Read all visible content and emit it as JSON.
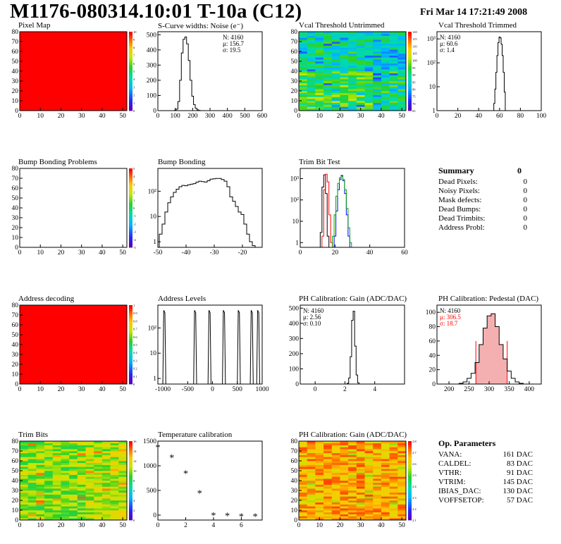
{
  "header": {
    "title": "M1176-080314.10:01 T-10a (C12)",
    "date": "Fri Mar 14 17:21:49 2008"
  },
  "panels": {
    "pixel_map": {
      "title": "Pixel Map"
    },
    "scurve": {
      "title": "S-Curve widths: Noise (e⁻)",
      "stats": [
        "N: 4160",
        "μ: 156.7",
        "σ: 19.5"
      ]
    },
    "vcal_untrimmed": {
      "title": "Vcal Threshold Untrimmed"
    },
    "vcal_trimmed": {
      "title": "Vcal Threshold Trimmed",
      "stats": [
        "N: 4160",
        "μ: 60.6",
        "σ:  1.4"
      ]
    },
    "bump_problems": {
      "title": "Bump Bonding Problems"
    },
    "bump_bonding": {
      "title": "Bump Bonding"
    },
    "trim_bit_test": {
      "title": "Trim Bit Test"
    },
    "address_decoding": {
      "title": "Address decoding"
    },
    "address_levels": {
      "title": "Address Levels"
    },
    "ph_gain": {
      "title": "PH Calibration: Gain (ADC/DAC)",
      "stats": [
        "N: 4160",
        "μ: 2.56",
        "σ: 0.10"
      ]
    },
    "ph_pedestal": {
      "title": "PH Calibration: Pedestal (DAC)",
      "stats": [
        "N: 4160",
        "μ: 306.5",
        "σ: 18.7"
      ]
    },
    "trim_bits": {
      "title": "Trim Bits"
    },
    "temp_calib": {
      "title": "Temperature calibration"
    },
    "ph_gain_map": {
      "title": "PH Calibration: Gain (ADC/DAC)"
    }
  },
  "summary": {
    "heading": "Summary",
    "total": "0",
    "rows": [
      {
        "label": "Dead Pixels:",
        "value": "0"
      },
      {
        "label": "Noisy Pixels:",
        "value": "0"
      },
      {
        "label": "Mask defects:",
        "value": "0"
      },
      {
        "label": "Dead Bumps:",
        "value": "0"
      },
      {
        "label": "Dead Trimbits:",
        "value": "0"
      },
      {
        "label": "Address Probl:",
        "value": "0"
      }
    ]
  },
  "op_parameters": {
    "heading": "Op. Parameters",
    "rows": [
      {
        "label": "VANA:",
        "value": "161 DAC"
      },
      {
        "label": "CALDEL:",
        "value": "83 DAC"
      },
      {
        "label": "VTHR:",
        "value": "91 DAC"
      },
      {
        "label": "VTRIM:",
        "value": "145 DAC"
      },
      {
        "label": "IBIAS_DAC:",
        "value": "130 DAC"
      },
      {
        "label": "VOFFSETOP:",
        "value": "57 DAC"
      }
    ]
  },
  "chart_data": [
    {
      "id": "pixel_map",
      "type": "heatmap",
      "title": "Pixel Map",
      "fill": "uniform-red",
      "xlim": [
        0,
        52
      ],
      "ylim": [
        0,
        80
      ],
      "xticks": [
        "0",
        "10",
        "20",
        "30",
        "40",
        "50"
      ],
      "yticks": [
        "0",
        "10",
        "20",
        "30",
        "40",
        "50",
        "60",
        "70",
        "80"
      ],
      "zticks": [
        "0",
        "1",
        "2",
        "3",
        "4",
        "5",
        "6",
        "7",
        "8",
        "9",
        "10"
      ]
    },
    {
      "id": "scurve",
      "type": "histogram",
      "title": "S-Curve widths: Noise (e⁻)",
      "xlim": [
        0,
        600
      ],
      "ylim": [
        0,
        520
      ],
      "xticks": [
        "0",
        "100",
        "200",
        "300",
        "400",
        "500",
        "600"
      ],
      "yticks": [
        "0",
        "100",
        "200",
        "300",
        "400",
        "500"
      ],
      "x": [
        100,
        110,
        120,
        130,
        140,
        150,
        160,
        170,
        180,
        190,
        200,
        210,
        220,
        230,
        240
      ],
      "y": [
        2,
        10,
        60,
        200,
        380,
        470,
        485,
        440,
        330,
        200,
        95,
        40,
        15,
        5,
        1
      ]
    },
    {
      "id": "vcal_untrimmed",
      "type": "heatmap",
      "title": "Vcal Threshold Untrimmed",
      "fill": "noisy-cyan-green",
      "xlim": [
        0,
        52
      ],
      "ylim": [
        0,
        80
      ],
      "xticks": [
        "0",
        "10",
        "20",
        "30",
        "40",
        "50"
      ],
      "yticks": [
        "0",
        "10",
        "20",
        "30",
        "40",
        "50",
        "60",
        "70",
        "80"
      ],
      "zticks": [
        "65",
        "70",
        "75",
        "80",
        "85",
        "90",
        "95",
        "100",
        "105",
        "110",
        "115",
        "120"
      ]
    },
    {
      "id": "vcal_trimmed",
      "type": "histogram",
      "title": "Vcal Threshold Trimmed",
      "log_y": true,
      "xlim": [
        0,
        100
      ],
      "ylim": [
        1,
        2000
      ],
      "xticks": [
        "0",
        "20",
        "40",
        "60",
        "80",
        "100"
      ],
      "yticks": [
        "1",
        "10",
        "10²",
        "10³"
      ],
      "x": [
        55,
        56,
        57,
        58,
        59,
        60,
        61,
        62,
        63,
        64,
        65,
        66
      ],
      "y": [
        2,
        8,
        40,
        200,
        700,
        1200,
        1100,
        600,
        200,
        40,
        6,
        1
      ]
    },
    {
      "id": "bump_problems",
      "type": "heatmap",
      "title": "Bump Bonding Problems",
      "fill": "empty",
      "xlim": [
        0,
        52
      ],
      "ylim": [
        0,
        80
      ],
      "xticks": [
        "0",
        "10",
        "20",
        "30",
        "40",
        "50"
      ],
      "yticks": [
        "0",
        "10",
        "20",
        "30",
        "40",
        "50",
        "60",
        "70",
        "80"
      ],
      "zticks": [
        "-5",
        "-4",
        "-3",
        "-2",
        "-1",
        "0",
        "1",
        "2",
        "3",
        "4",
        "5"
      ]
    },
    {
      "id": "bump_bonding",
      "type": "histogram",
      "title": "Bump Bonding",
      "log_y": true,
      "xlim": [
        -50,
        -13
      ],
      "ylim": [
        0.6,
        800
      ],
      "xticks": [
        "-50",
        "-40",
        "-30",
        "-20"
      ],
      "yticks": [
        "1",
        "10",
        "10²"
      ],
      "x": [
        -49,
        -48,
        -47,
        -46,
        -45,
        -44,
        -43,
        -42,
        -41,
        -40,
        -39,
        -38,
        -37,
        -36,
        -35,
        -34,
        -33,
        -32,
        -31,
        -30,
        -29,
        -28,
        -27,
        -26,
        -25,
        -24,
        -23,
        -22,
        -21,
        -20,
        -19,
        -18,
        -17,
        -16
      ],
      "y": [
        2,
        5,
        15,
        35,
        60,
        90,
        120,
        150,
        170,
        165,
        180,
        190,
        200,
        230,
        250,
        240,
        230,
        260,
        300,
        310,
        320,
        320,
        290,
        250,
        150,
        60,
        40,
        25,
        15,
        12,
        5,
        2,
        1,
        0.7
      ]
    },
    {
      "id": "trim_bit_test",
      "type": "histogram",
      "title": "Trim Bit Test",
      "log_y": true,
      "xlim": [
        0,
        60
      ],
      "ylim": [
        0.6,
        3000
      ],
      "xticks": [
        "0",
        "20",
        "40",
        "60"
      ],
      "yticks": [
        "1",
        "10",
        "10²",
        "10³"
      ],
      "series": [
        {
          "color": "#000000",
          "x": [
            12,
            13,
            14,
            15,
            16
          ],
          "y": [
            3,
            400,
            1500,
            200,
            2
          ]
        },
        {
          "color": "#ff0000",
          "x": [
            13,
            14,
            15,
            16,
            17,
            18
          ],
          "y": [
            2,
            300,
            1600,
            700,
            20,
            1
          ]
        },
        {
          "color": "#0000ff",
          "x": [
            20,
            21,
            22,
            23,
            24,
            25,
            26,
            27,
            28
          ],
          "y": [
            2,
            30,
            300,
            900,
            1400,
            800,
            200,
            20,
            2
          ]
        },
        {
          "color": "#00a000",
          "x": [
            19,
            20,
            21,
            22,
            23,
            24,
            25,
            26,
            27,
            28,
            29
          ],
          "y": [
            2,
            20,
            150,
            600,
            1100,
            1300,
            900,
            300,
            40,
            5,
            1
          ]
        }
      ]
    },
    {
      "id": "address_decoding",
      "type": "heatmap",
      "title": "Address decoding",
      "fill": "uniform-red",
      "xlim": [
        0,
        52
      ],
      "ylim": [
        0,
        80
      ],
      "xticks": [
        "0",
        "10",
        "20",
        "30",
        "40",
        "50"
      ],
      "yticks": [
        "0",
        "10",
        "20",
        "30",
        "40",
        "50",
        "60",
        "70",
        "80"
      ],
      "zticks": [
        "0",
        "0.1",
        "0.2",
        "0.3",
        "0.4",
        "0.5",
        "0.6",
        "0.7",
        "0.8",
        "0.9",
        "1"
      ]
    },
    {
      "id": "address_levels",
      "type": "histogram",
      "title": "Address Levels",
      "log_y": true,
      "xlim": [
        -1100,
        1000
      ],
      "ylim": [
        0.6,
        800
      ],
      "xticks": [
        "-1000",
        "-500",
        "0",
        "500",
        "1000"
      ],
      "yticks": [
        "1",
        "10",
        "10²"
      ],
      "peaks": [
        -970,
        -350,
        -60,
        230,
        530,
        790,
        920
      ],
      "peak_height": 500
    },
    {
      "id": "ph_gain",
      "type": "histogram",
      "title": "PH Calibration: Gain (ADC/DAC)",
      "xlim": [
        -1,
        6
      ],
      "ylim": [
        0,
        520
      ],
      "xticks": [
        "0",
        "2",
        "4"
      ],
      "yticks": [
        "0",
        "100",
        "200",
        "300",
        "400",
        "500"
      ],
      "x": [
        2.2,
        2.3,
        2.4,
        2.5,
        2.6,
        2.7,
        2.8,
        2.9
      ],
      "y": [
        5,
        40,
        180,
        420,
        480,
        250,
        60,
        8
      ]
    },
    {
      "id": "ph_pedestal",
      "type": "histogram",
      "title": "PH Calibration: Pedestal (DAC)",
      "xlim": [
        170,
        430
      ],
      "ylim": [
        0,
        110
      ],
      "xticks": [
        "200",
        "250",
        "300",
        "350",
        "400"
      ],
      "yticks": [
        "0",
        "20",
        "40",
        "60",
        "80",
        "100"
      ],
      "x": [
        230,
        240,
        250,
        260,
        270,
        280,
        290,
        300,
        310,
        320,
        330,
        340,
        350,
        360,
        370,
        380
      ],
      "y": [
        1,
        3,
        8,
        15,
        30,
        55,
        78,
        95,
        98,
        80,
        55,
        35,
        18,
        8,
        3,
        1
      ],
      "cut_lines": [
        267,
        345
      ]
    },
    {
      "id": "trim_bits",
      "type": "heatmap",
      "title": "Trim Bits",
      "fill": "noisy-green-yellow",
      "xlim": [
        0,
        52
      ],
      "ylim": [
        0,
        80
      ],
      "xticks": [
        "0",
        "10",
        "20",
        "30",
        "40",
        "50"
      ],
      "yticks": [
        "0",
        "10",
        "20",
        "30",
        "40",
        "50",
        "60",
        "70",
        "80"
      ],
      "zticks": [
        "0",
        "2",
        "4",
        "6",
        "8",
        "10",
        "12",
        "14",
        "16"
      ]
    },
    {
      "id": "temp_calib",
      "type": "scatter",
      "title": "Temperature calibration",
      "xlim": [
        0,
        7.5
      ],
      "ylim": [
        -100,
        1500
      ],
      "xticks": [
        "0",
        "2",
        "4",
        "6"
      ],
      "yticks": [
        "0",
        "500",
        "1000",
        "1500"
      ],
      "x": [
        0,
        1,
        2,
        3,
        4,
        5,
        6,
        7
      ],
      "y": [
        1380,
        1170,
        850,
        450,
        0,
        -10,
        -20,
        -20
      ]
    },
    {
      "id": "ph_gain_map",
      "type": "heatmap",
      "title": "PH Calibration: Gain (ADC/DAC)",
      "fill": "noisy-orange-red",
      "xlim": [
        0,
        52
      ],
      "ylim": [
        0,
        80
      ],
      "xticks": [
        "0",
        "10",
        "20",
        "30",
        "40",
        "50"
      ],
      "yticks": [
        "0",
        "10",
        "20",
        "30",
        "40",
        "50",
        "60",
        "70",
        "80"
      ],
      "zticks": [
        "2.1",
        "2.2",
        "2.3",
        "2.4",
        "2.5",
        "2.6",
        "2.7",
        "2.8"
      ]
    }
  ]
}
